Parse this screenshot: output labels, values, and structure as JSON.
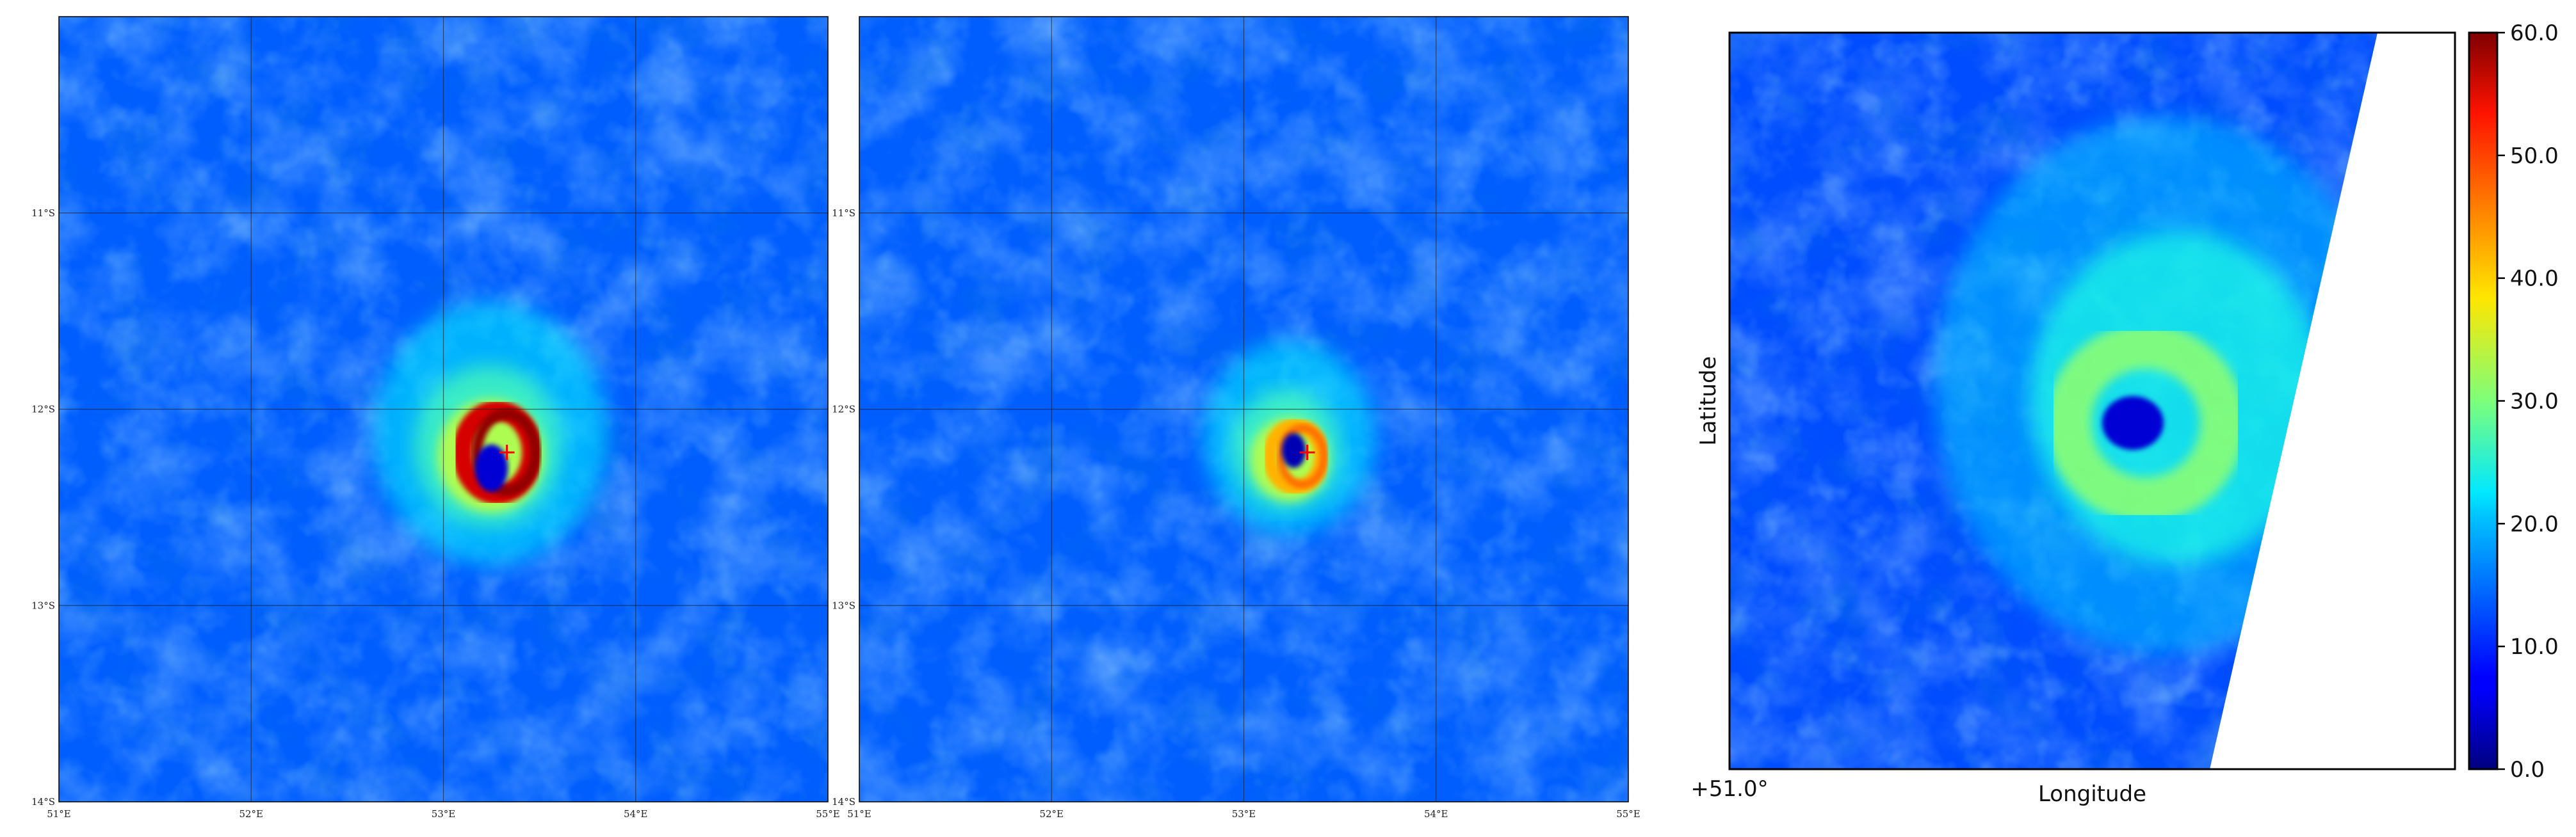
{
  "chart_data": [
    {
      "type": "heatmap",
      "panel": "left",
      "title": "",
      "xlabel": "",
      "ylabel": "",
      "x_ticks": [
        "51°E",
        "52°E",
        "53°E",
        "54°E",
        "55°E"
      ],
      "y_ticks": [
        "11°S",
        "12°S",
        "13°S",
        "14°S"
      ],
      "xlim": [
        51,
        55
      ],
      "ylim": [
        -14,
        -10
      ],
      "grid": true,
      "colormap": "jet",
      "background_value": 13,
      "storm_center": {
        "lon": 53.33,
        "lat": -12.22
      },
      "max_wind_ring": {
        "lon": 53.28,
        "lat": -12.22,
        "radius_deg": 0.19,
        "value": 55
      },
      "eye": {
        "lon": 53.25,
        "lat": -12.3,
        "value": 5
      },
      "marker": {
        "symbol": "+",
        "color": "#ff0000"
      }
    },
    {
      "type": "heatmap",
      "panel": "middle",
      "title": "",
      "xlabel": "",
      "ylabel": "",
      "x_ticks": [
        "51°E",
        "52°E",
        "53°E",
        "54°E",
        "55°E"
      ],
      "y_ticks": [
        "11°S",
        "12°S",
        "13°S",
        "14°S"
      ],
      "xlim": [
        51,
        55
      ],
      "ylim": [
        -14,
        -10
      ],
      "grid": true,
      "colormap": "jet",
      "background_value": 13,
      "storm_center": {
        "lon": 53.33,
        "lat": -12.22
      },
      "max_wind_ring": {
        "lon": 53.27,
        "lat": -12.24,
        "radius_deg": 0.14,
        "value": 42
      },
      "eye": {
        "lon": 53.26,
        "lat": -12.21,
        "value": 3
      },
      "marker": {
        "symbol": "+",
        "color": "#ff0000"
      }
    },
    {
      "type": "heatmap",
      "panel": "right",
      "title": "",
      "xlabel": "Longitude",
      "ylabel": "Latitude",
      "x_ticks": [
        "+51.0°"
      ],
      "colormap": "jet",
      "colorbar": {
        "min": 0,
        "max": 60,
        "ticks": [
          "0.0",
          "10.0",
          "20.0",
          "30.0",
          "40.0",
          "50.0",
          "60.0"
        ],
        "placement": "right"
      },
      "background_value": 12,
      "eye_value": 5,
      "eyewall_value": 31,
      "swath_edge": "no-data (white) beyond diagonal right edge"
    }
  ]
}
